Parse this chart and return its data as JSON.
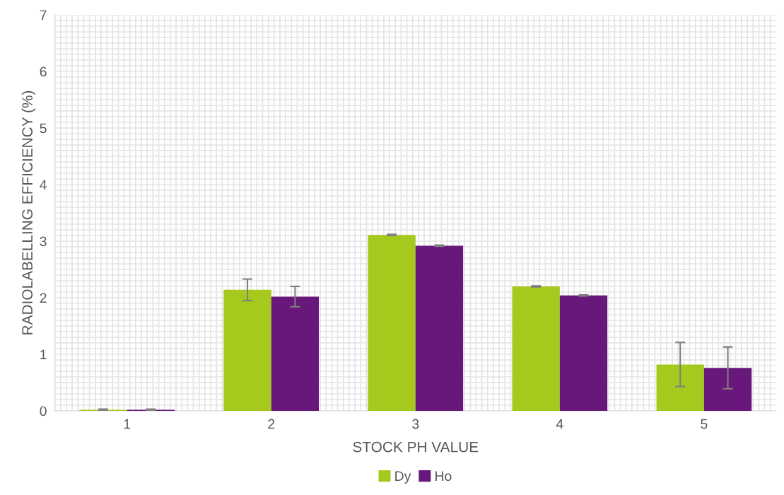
{
  "chart_data": {
    "type": "bar",
    "xlabel": "STOCK PH VALUE",
    "ylabel": "RADIOLABELLING EFFICIENCY (%)",
    "categories": [
      "1",
      "2",
      "3",
      "4",
      "5"
    ],
    "series": [
      {
        "name": "Dy",
        "color": "#a5c91c",
        "values": [
          0.02,
          2.14,
          3.11,
          2.2,
          0.82
        ],
        "errors": [
          0.01,
          0.19,
          0.01,
          0.01,
          0.39
        ]
      },
      {
        "name": "Ho",
        "color": "#67187a",
        "values": [
          0.02,
          2.02,
          2.92,
          2.04,
          0.76
        ],
        "errors": [
          0.01,
          0.18,
          0.01,
          0.01,
          0.37
        ]
      }
    ],
    "ylim": [
      0,
      7
    ],
    "yticks": [
      0,
      1,
      2,
      3,
      4,
      5,
      6,
      7
    ],
    "grid": true,
    "legend": "bottom"
  }
}
